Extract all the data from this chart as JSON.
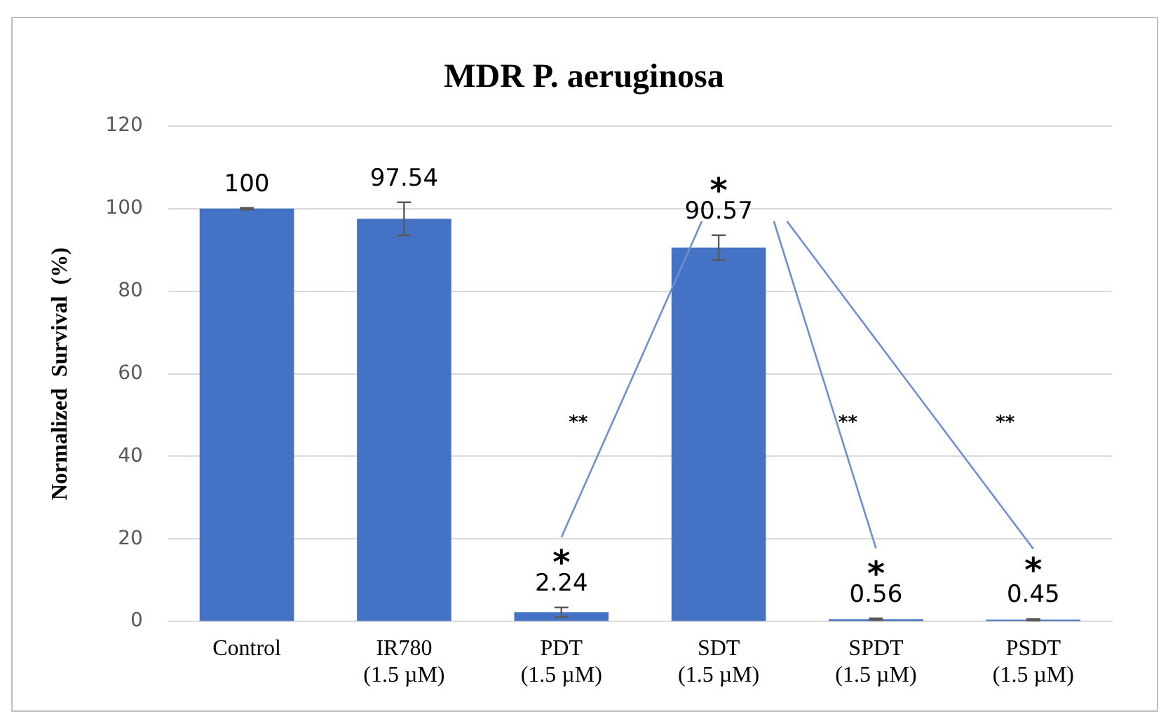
{
  "chart_data": {
    "type": "bar",
    "title": "MDR P. aeruginosa",
    "ylabel": "Normalized  Survival  (%)",
    "categories": [
      "Control",
      "IR780 (1.5 µM)",
      "PDT (1.5 µM)",
      "SDT (1.5 µM)",
      "SPDT (1.5 µM)",
      "PSDT (1.5 µM)"
    ],
    "values": [
      100,
      97.54,
      2.24,
      90.57,
      0.56,
      0.45
    ],
    "errors": [
      0.2,
      4,
      1.2,
      3,
      0.2,
      0.2
    ],
    "color": "#4472c4",
    "ylim": [
      0,
      120
    ],
    "yticks": [
      0,
      20,
      40,
      60,
      80,
      100,
      120
    ],
    "grid": "y",
    "data_labels": true,
    "annotations": [
      "*",
      "*",
      "*",
      "*",
      "**",
      "**",
      "**"
    ]
  }
}
